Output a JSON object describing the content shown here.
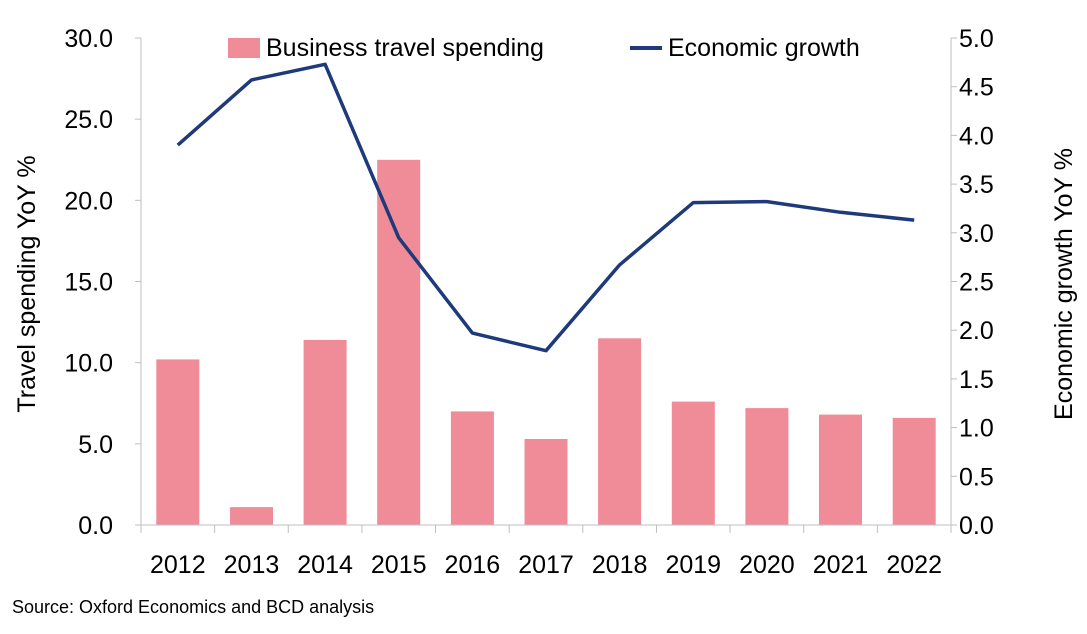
{
  "chart_data": {
    "type": "bar",
    "categories": [
      "2012",
      "2013",
      "2014",
      "2015",
      "2016",
      "2017",
      "2018",
      "2019",
      "2020",
      "2021",
      "2022"
    ],
    "series": [
      {
        "name": "Business travel spending",
        "type": "bar",
        "axis": "left",
        "color": "#f08c98",
        "values": [
          10.2,
          1.1,
          11.4,
          22.5,
          7.0,
          5.3,
          11.5,
          7.6,
          7.2,
          6.8,
          6.6
        ]
      },
      {
        "name": "Economic growth",
        "type": "line",
        "axis": "right",
        "color": "#1f3a7a",
        "values": [
          3.9,
          4.57,
          4.73,
          2.95,
          1.97,
          1.79,
          2.67,
          3.31,
          3.32,
          3.21,
          3.13
        ]
      }
    ],
    "ylabel": "Travel spending YoY %",
    "ylabel_right": "Economic growth YoY %",
    "ylim": [
      0,
      30
    ],
    "ylim_right": [
      0,
      5
    ],
    "yticks": [
      "0.0",
      "5.0",
      "10.0",
      "15.0",
      "20.0",
      "25.0",
      "30.0"
    ],
    "yticks_right": [
      "0.0",
      "0.5",
      "1.0",
      "1.5",
      "2.0",
      "2.5",
      "3.0",
      "3.5",
      "4.0",
      "4.5",
      "5.0"
    ],
    "grid": false,
    "legend_position": "top"
  },
  "source": "Source: Oxford Economics and BCD analysis"
}
